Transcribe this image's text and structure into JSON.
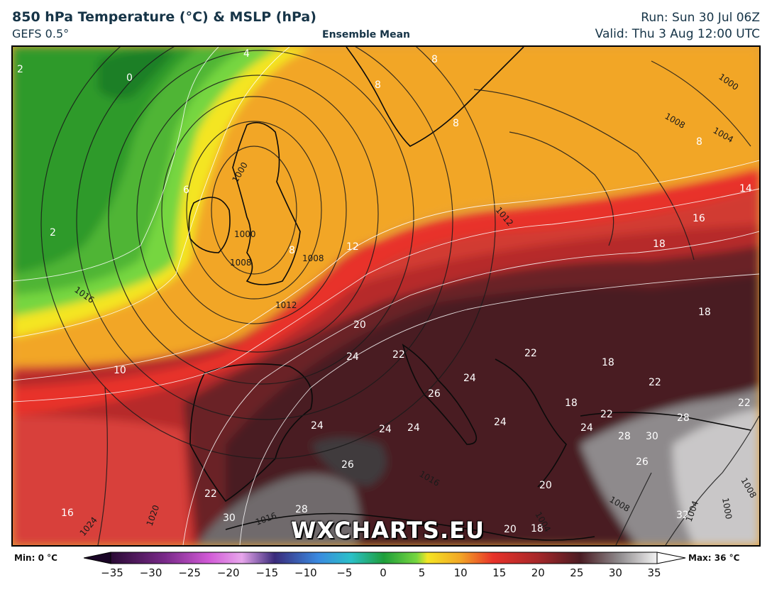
{
  "header": {
    "title": "850 hPa Temperature (°C) & MSLP (hPa)",
    "model": "GEFS 0.5°",
    "subtitle": "Ensemble Mean",
    "run": "Run: Sun 30 Jul 06Z",
    "valid": "Valid: Thu 3 Aug 12:00 UTC"
  },
  "watermark": "WXCHARTS.EU",
  "colorbar": {
    "min_label": "Min: 0 °C",
    "max_label": "Max: 36 °C",
    "ticks": [
      "−35",
      "−30",
      "−25",
      "−20",
      "−15",
      "−10",
      "−5",
      "0",
      "5",
      "10",
      "15",
      "20",
      "25",
      "30",
      "35"
    ],
    "range": [
      -35,
      35
    ]
  },
  "temperature_labels": [
    "2",
    "0",
    "4",
    "8",
    "8",
    "8",
    "8",
    "6",
    "2",
    "8",
    "12",
    "14",
    "16",
    "18",
    "18",
    "10",
    "20",
    "24",
    "22",
    "22",
    "18",
    "24",
    "26",
    "22",
    "18",
    "22",
    "24",
    "24",
    "24",
    "24",
    "28",
    "30",
    "26",
    "22",
    "28",
    "24",
    "26",
    "22",
    "30",
    "28",
    "16",
    "20",
    "20",
    "18",
    "32"
  ],
  "pressure_labels": [
    "1016",
    "1008",
    "1000",
    "1000",
    "1008",
    "1012",
    "1000",
    "1008",
    "1004",
    "1012",
    "1016",
    "1020",
    "1024",
    "1016",
    "1008",
    "1004",
    "1000",
    "1004",
    "1008"
  ],
  "colors": {
    "header_text": "#163447",
    "cold_green": "#2e9a2b",
    "warm_yellow": "#f6e722",
    "hot_red": "#e02a23",
    "very_hot": "#4a1d22"
  }
}
